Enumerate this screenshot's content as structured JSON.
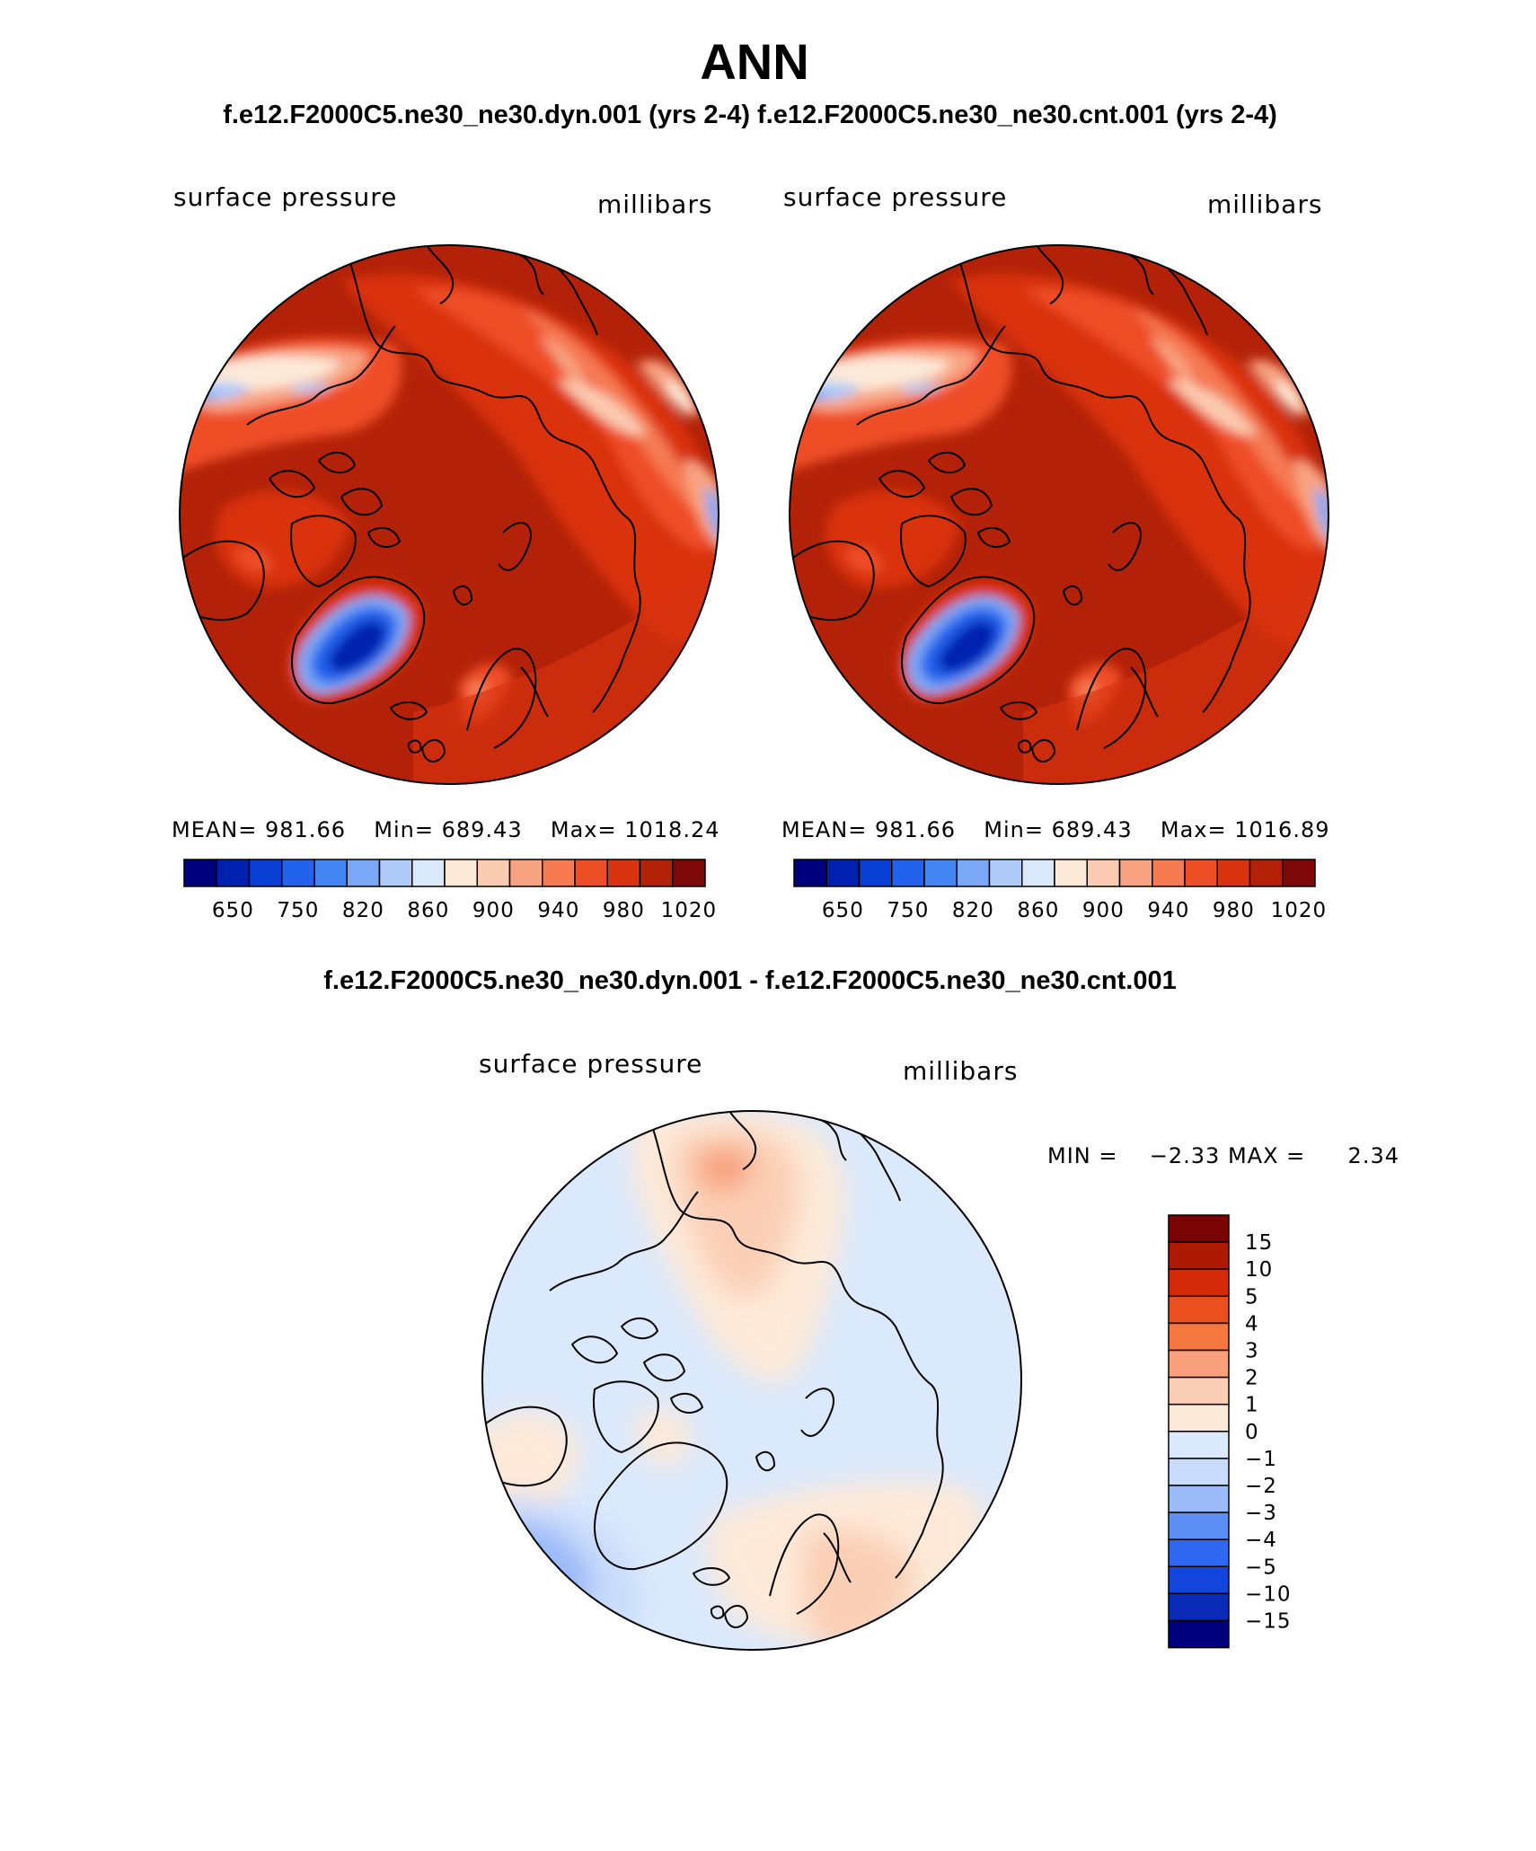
{
  "title": "ANN",
  "top_caption": "f.e12.F2000C5.ne30_ne30.dyn.001 (yrs 2-4)  f.e12.F2000C5.ne30_ne30.cnt.001 (yrs 2-4)",
  "diff_caption": "f.e12.F2000C5.ne30_ne30.dyn.001 - f.e12.F2000C5.ne30_ne30.cnt.001",
  "colors": {
    "abs_scale": [
      "#00007e",
      "#0020b0",
      "#0a3fd6",
      "#2262ec",
      "#4486f4",
      "#7aa8f6",
      "#afcbf9",
      "#dbe9fc",
      "#fde9d8",
      "#fbcbb1",
      "#f8a483",
      "#f57a52",
      "#ee4e26",
      "#d93310",
      "#b32208",
      "#7e0707"
    ],
    "diff_scale": [
      "#00007e",
      "#0a2ab8",
      "#1345dd",
      "#2f68f0",
      "#5d8ff4",
      "#9bbaf8",
      "#c9dcfb",
      "#dbe9fc",
      "#fde9d8",
      "#fbcfb5",
      "#f8a07c",
      "#f3773f",
      "#ea4f1e",
      "#d42a0a",
      "#ac1a04",
      "#7a0303"
    ]
  },
  "panels": [
    {
      "variable": "surface pressure",
      "units": "millibars",
      "stats": {
        "mean_label": "MEAN=",
        "mean": "981.66",
        "min_label": "Min=",
        "min": "689.43",
        "max_label": "Max=",
        "max": "1018.24"
      },
      "colorbar_labels": [
        "650",
        "750",
        "820",
        "860",
        "900",
        "940",
        "980",
        "1020"
      ]
    },
    {
      "variable": "surface pressure",
      "units": "millibars",
      "stats": {
        "mean_label": "MEAN=",
        "mean": "981.66",
        "min_label": "Min=",
        "min": "689.43",
        "max_label": "Max=",
        "max": "1016.89"
      },
      "colorbar_labels": [
        "650",
        "750",
        "820",
        "860",
        "900",
        "940",
        "980",
        "1020"
      ]
    }
  ],
  "diff_panel": {
    "variable": "surface pressure",
    "units": "millibars",
    "min_label": "MIN =",
    "min": "−2.33",
    "max_label": "MAX =",
    "max": "2.34",
    "colorbar_labels": [
      "15",
      "10",
      "5",
      "4",
      "3",
      "2",
      "1",
      "0",
      "−1",
      "−2",
      "−3",
      "−4",
      "−5",
      "−10",
      "−15"
    ]
  }
}
